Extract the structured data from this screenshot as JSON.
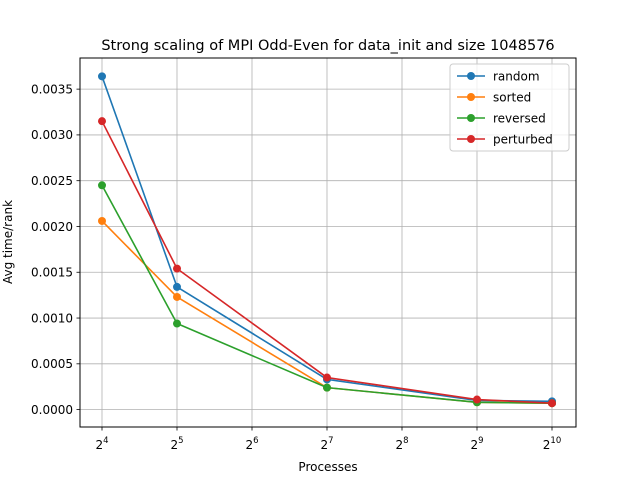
{
  "chart_data": {
    "type": "line",
    "title": "Strong scaling of MPI Odd-Even for data_init and size 1048576",
    "xlabel": "Processes",
    "ylabel": "Avg time/rank",
    "x_scale": "log2",
    "x": [
      16,
      32,
      128,
      512,
      1024
    ],
    "xticks": [
      {
        "value": 16,
        "base": "2",
        "exp": "4"
      },
      {
        "value": 32,
        "base": "2",
        "exp": "5"
      },
      {
        "value": 64,
        "base": "2",
        "exp": "6"
      },
      {
        "value": 128,
        "base": "2",
        "exp": "7"
      },
      {
        "value": 256,
        "base": "2",
        "exp": "8"
      },
      {
        "value": 512,
        "base": "2",
        "exp": "9"
      },
      {
        "value": 1024,
        "base": "2",
        "exp": "10"
      }
    ],
    "yticks": [
      "0.0000",
      "0.0005",
      "0.0010",
      "0.0015",
      "0.0020",
      "0.0025",
      "0.0030",
      "0.0035"
    ],
    "ytick_values": [
      0.0,
      0.0005,
      0.001,
      0.0015,
      0.002,
      0.0025,
      0.003,
      0.0035
    ],
    "ylim": [
      -0.00019,
      0.00384
    ],
    "grid": true,
    "legend_position": "top-right",
    "series": [
      {
        "name": "random",
        "color": "#1f77b4",
        "values": [
          0.00364,
          0.00134,
          0.00033,
          0.0001,
          9e-05
        ]
      },
      {
        "name": "sorted",
        "color": "#ff7f0e",
        "values": [
          0.00206,
          0.00123,
          0.00024,
          8e-05,
          7e-05
        ]
      },
      {
        "name": "reversed",
        "color": "#2ca02c",
        "values": [
          0.00245,
          0.00094,
          0.00024,
          8e-05,
          7e-05
        ]
      },
      {
        "name": "perturbed",
        "color": "#d62728",
        "values": [
          0.00315,
          0.00154,
          0.00035,
          0.00011,
          7e-05
        ]
      }
    ]
  }
}
